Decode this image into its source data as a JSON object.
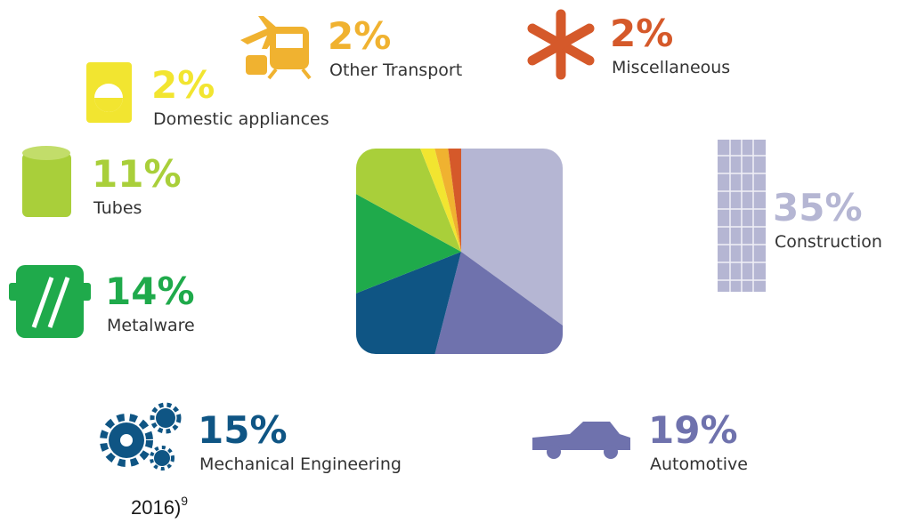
{
  "chart_data": {
    "type": "pie",
    "categories": [
      "Construction",
      "Automotive",
      "Mechanical Engineering",
      "Metalware",
      "Tubes",
      "Domestic appliances",
      "Other Transport",
      "Miscellaneous"
    ],
    "values": [
      35,
      19,
      15,
      14,
      11,
      2,
      2,
      2
    ],
    "value_labels": [
      "35%",
      "19%",
      "15%",
      "14%",
      "11%",
      "2%",
      "2%",
      "2%"
    ],
    "colors": [
      "#b5b6d3",
      "#6f72ad",
      "#0f5584",
      "#1faa4b",
      "#a9cf3a",
      "#f2e530",
      "#f0b230",
      "#d5592a"
    ]
  },
  "caption_fragment": {
    "text": "2016)",
    "superscript": "9"
  }
}
